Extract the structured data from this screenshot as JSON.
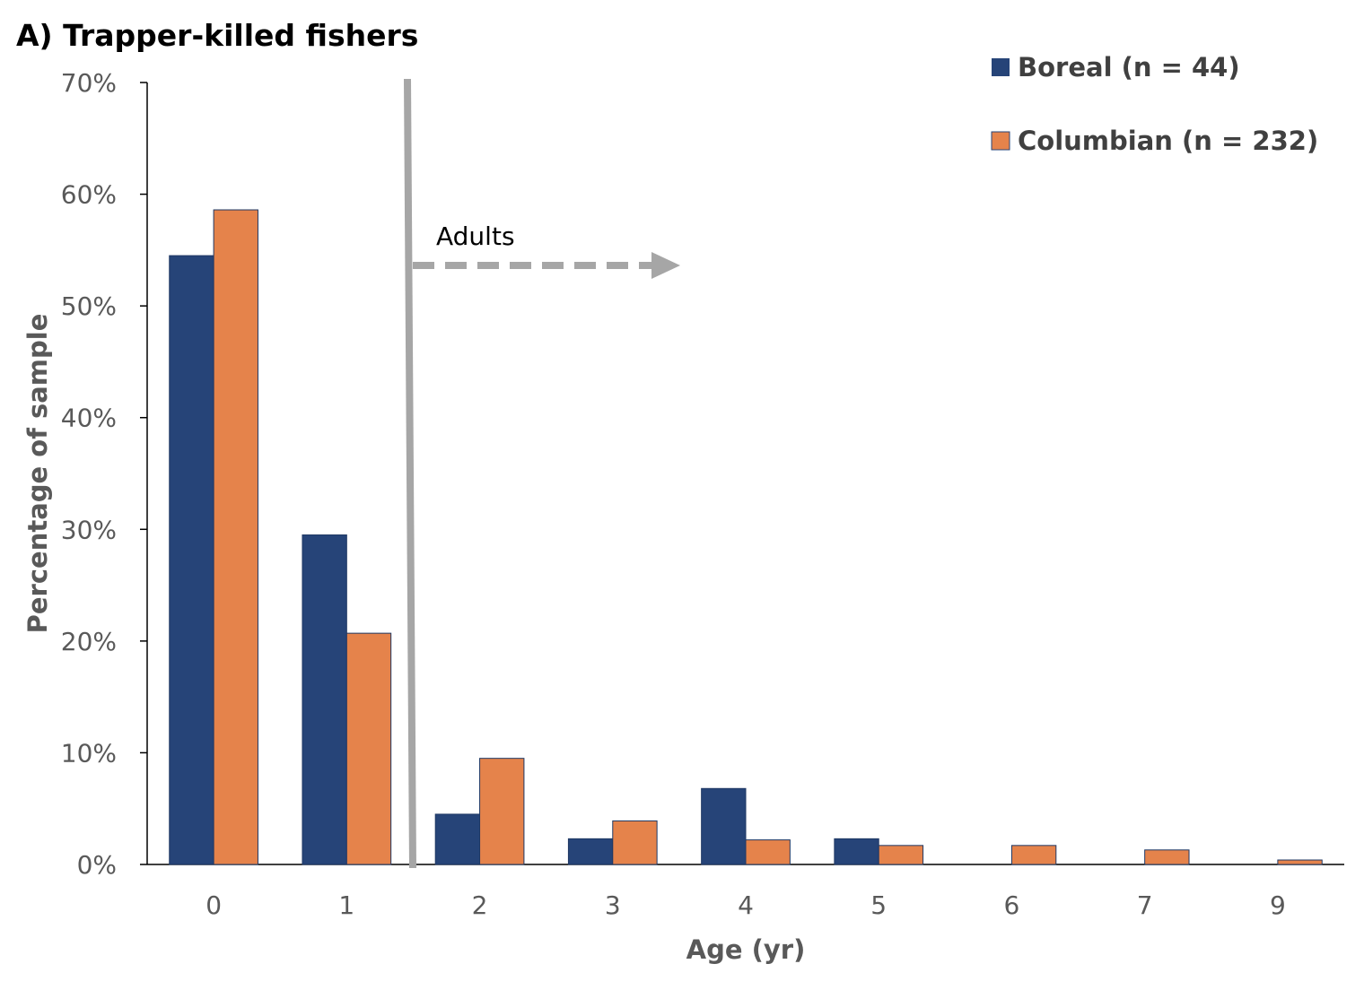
{
  "chart_data": {
    "type": "bar",
    "title": "A) Trapper-killed fishers",
    "xlabel": "Age (yr)",
    "ylabel": "Percentage of sample",
    "categories": [
      "0",
      "1",
      "2",
      "3",
      "4",
      "5",
      "6",
      "7",
      "9"
    ],
    "y_ticks": [
      "0%",
      "10%",
      "20%",
      "30%",
      "40%",
      "50%",
      "60%",
      "70%"
    ],
    "ylim": [
      0,
      70
    ],
    "grid": false,
    "legend_position": "top-right",
    "series": [
      {
        "name": "Boreal (n = 44)",
        "color": "#264478",
        "values": [
          54.5,
          29.5,
          4.5,
          2.3,
          6.8,
          2.3,
          0,
          0,
          0
        ]
      },
      {
        "name": "Columbian (n = 232)",
        "color": "#E5834B",
        "values": [
          58.6,
          20.7,
          9.5,
          3.9,
          2.2,
          1.7,
          1.7,
          1.3,
          0.4
        ]
      }
    ],
    "annotation": {
      "text": "Adults",
      "divider_after_category": "1",
      "arrow_direction": "right",
      "color": "#a6a6a6"
    }
  }
}
